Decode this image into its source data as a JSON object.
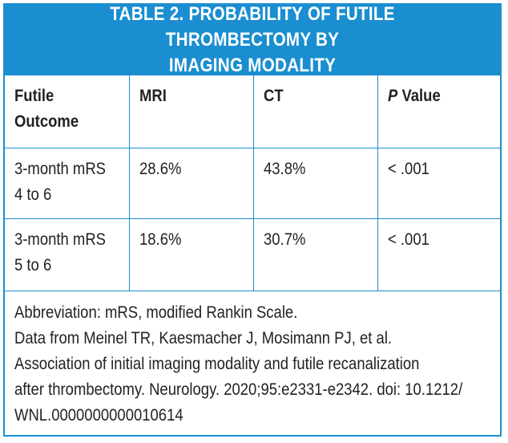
{
  "title": {
    "line1": "TABLE 2.  PROBABILITY OF FUTILE THROMBECTOMY BY",
    "line2": "IMAGING MODALITY"
  },
  "headers": {
    "outcome_line1": "Futile",
    "outcome_line2": "Outcome",
    "mri": "MRI",
    "ct": "CT",
    "p_letter": "P",
    "p_rest": " Value"
  },
  "rows": [
    {
      "outcome_line1": "3-month mRS",
      "outcome_line2": "4 to 6",
      "mri": "28.6%",
      "ct": "43.8%",
      "p_value": "< .001"
    },
    {
      "outcome_line1": "3-month mRS",
      "outcome_line2": "5 to 6",
      "mri": "18.6%",
      "ct": "30.7%",
      "p_value": "< .001"
    }
  ],
  "footnote": {
    "line1": "Abbreviation: mRS, modified Rankin Scale.",
    "line2": "Data from Meinel TR, Kaesmacher J, Mosimann PJ, et al.",
    "line3": "Association of initial imaging modality and futile recanalization",
    "line4": "after thrombectomy. Neurology. 2020;95:e2331-e2342. doi: 10.1212/",
    "line5": "WNL.0000000000010614"
  },
  "colors": {
    "accent": "#1a8ed0",
    "text": "#222222",
    "title_text": "#ffffff"
  }
}
